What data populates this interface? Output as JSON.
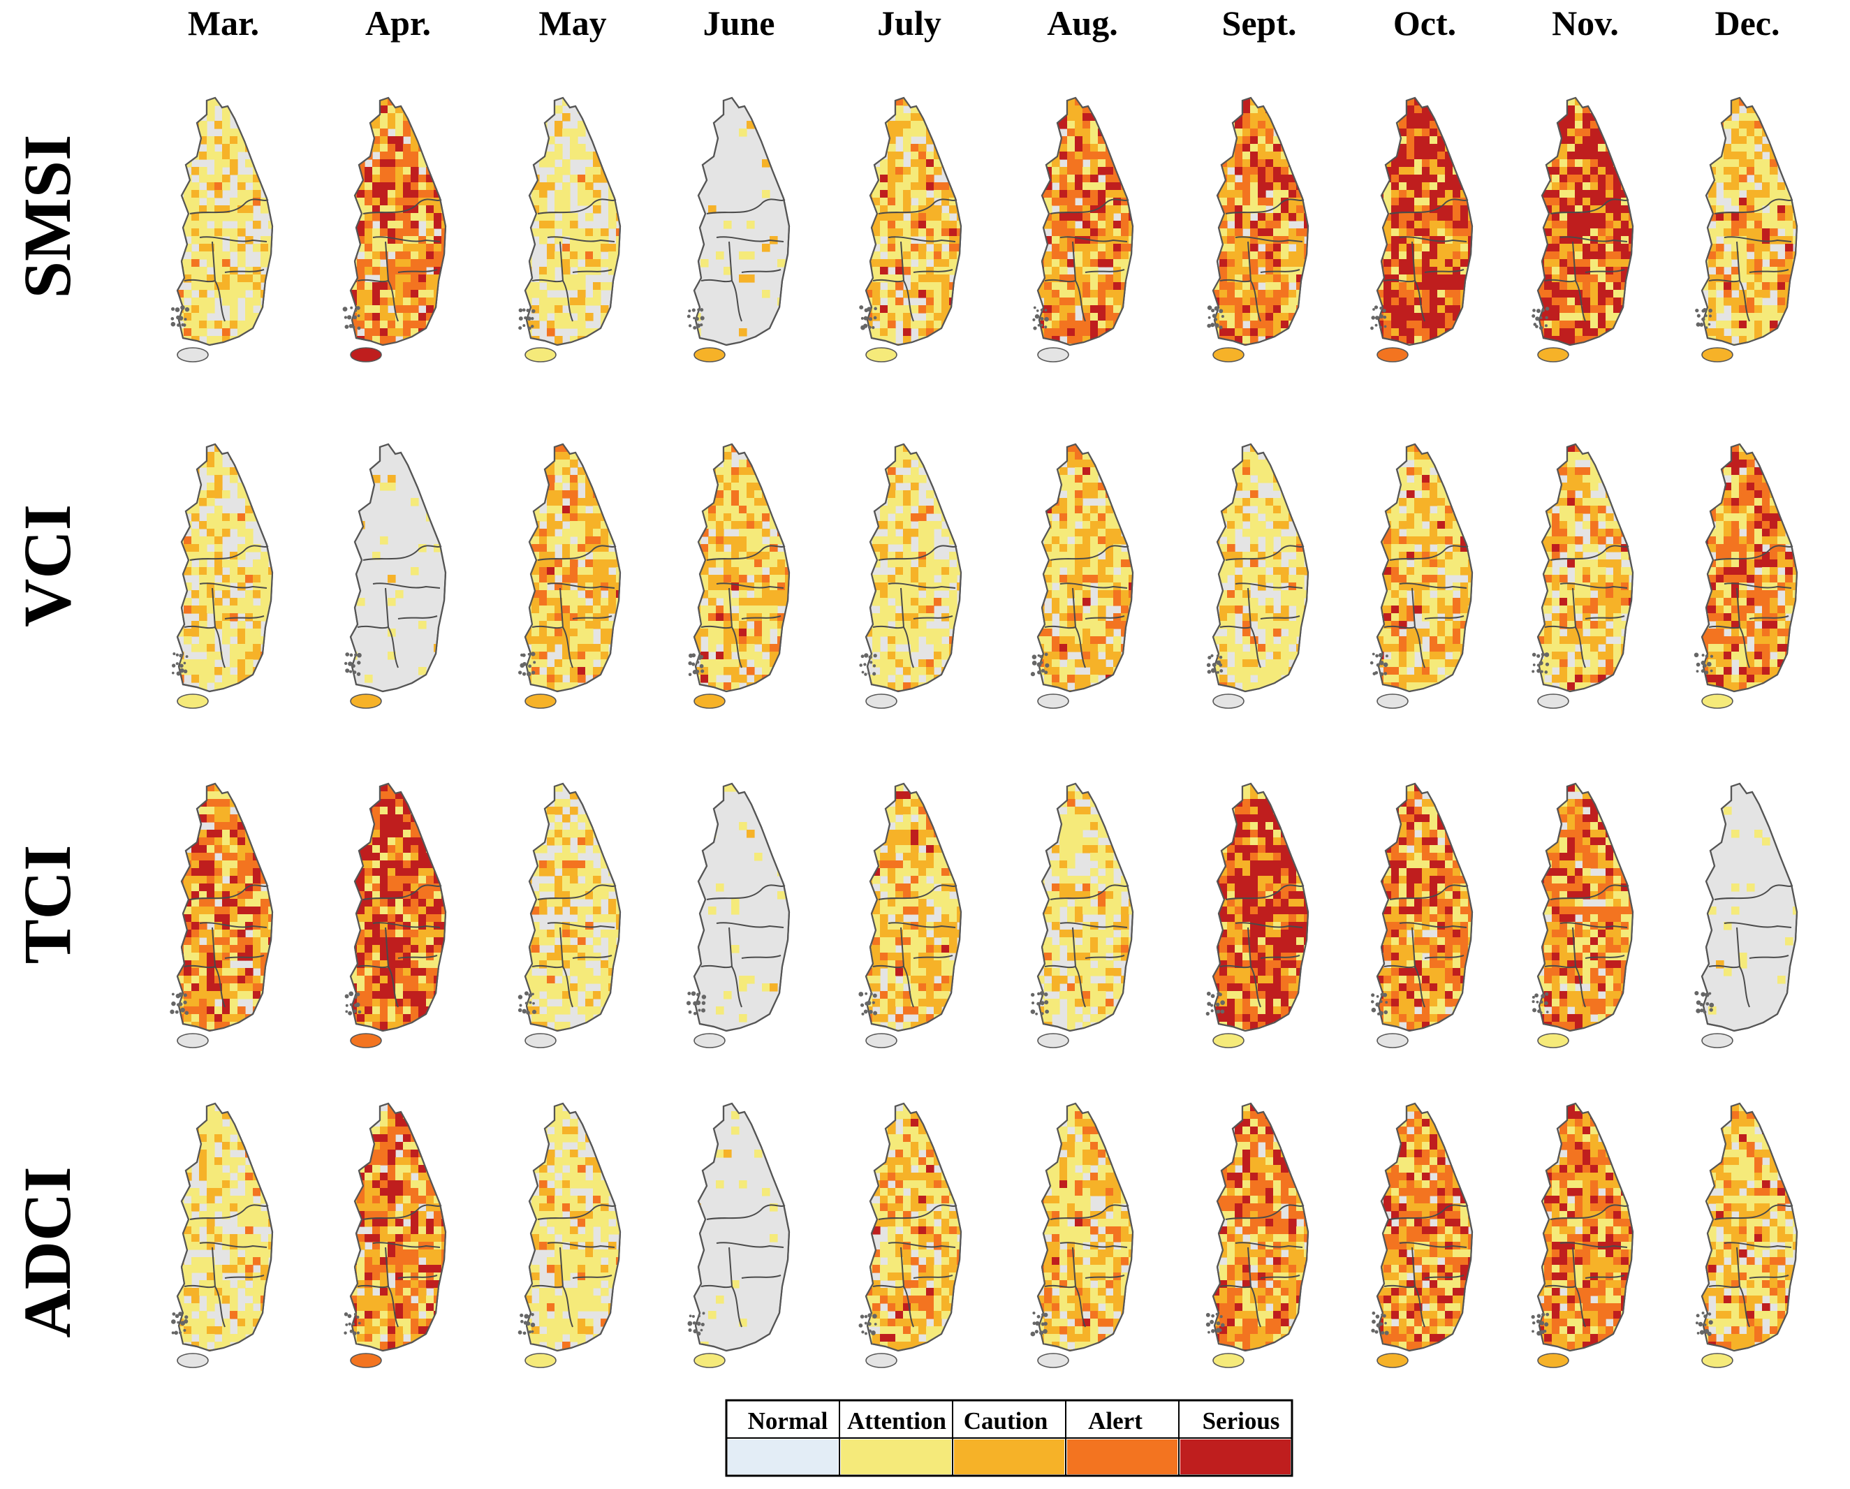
{
  "columns": [
    {
      "label": "Mar."
    },
    {
      "label": "Apr."
    },
    {
      "label": "May"
    },
    {
      "label": "June"
    },
    {
      "label": "July"
    },
    {
      "label": "Aug."
    },
    {
      "label": "Sept."
    },
    {
      "label": "Oct."
    },
    {
      "label": "Nov."
    },
    {
      "label": "Dec."
    }
  ],
  "rows": [
    {
      "label": "SMSI",
      "severity_by_month": [
        1,
        3,
        1,
        0,
        2,
        3,
        3,
        4,
        4,
        2
      ],
      "jeju_level": [
        0,
        4,
        1,
        2,
        1,
        0,
        2,
        3,
        2,
        2
      ]
    },
    {
      "label": "VCI",
      "severity_by_month": [
        1,
        0,
        2,
        2,
        1,
        2,
        1,
        2,
        2,
        3
      ],
      "jeju_level": [
        1,
        2,
        2,
        2,
        0,
        0,
        0,
        0,
        0,
        1
      ]
    },
    {
      "label": "TCI",
      "severity_by_month": [
        3,
        4,
        1,
        0,
        2,
        1,
        4,
        3,
        3,
        0
      ],
      "jeju_level": [
        0,
        3,
        0,
        0,
        0,
        0,
        1,
        0,
        1,
        0
      ]
    },
    {
      "label": "ADCI",
      "severity_by_month": [
        1,
        3,
        1,
        0,
        2,
        2,
        3,
        3,
        3,
        2
      ],
      "jeju_level": [
        0,
        3,
        1,
        1,
        0,
        0,
        1,
        2,
        2,
        1
      ]
    }
  ],
  "legend": {
    "items": [
      {
        "label": "Normal",
        "color": "#e3edf6"
      },
      {
        "label": "Attention",
        "color": "#f5ea7a"
      },
      {
        "label": "Caution",
        "color": "#f6b228"
      },
      {
        "label": "Alert",
        "color": "#f37420"
      },
      {
        "label": "Serious",
        "color": "#bf1e1e"
      }
    ]
  }
}
